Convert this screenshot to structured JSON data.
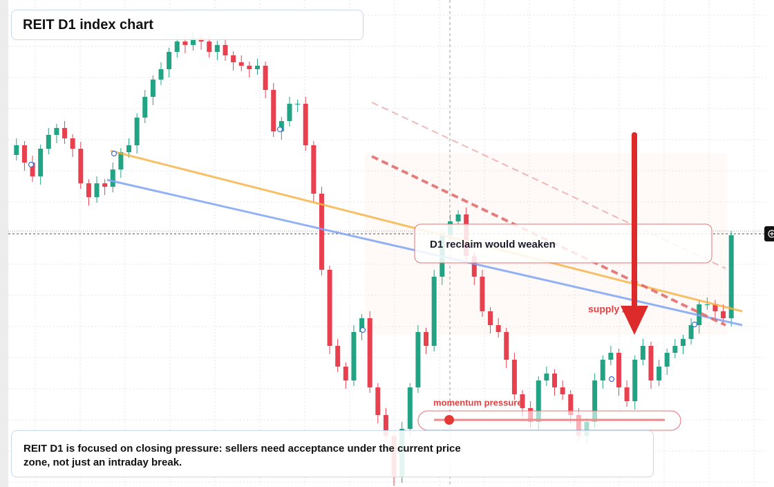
{
  "chart_data": {
    "type": "candlestick",
    "title": "REIT D1 index chart",
    "ylim": [
      0,
      704
    ],
    "up_color": "#22a383",
    "down_color": "#e8404f",
    "ohlc": [
      [
        480,
        504,
        472,
        494
      ],
      [
        494,
        500,
        457,
        469
      ],
      [
        469,
        479,
        441,
        449
      ],
      [
        449,
        495,
        437,
        489
      ],
      [
        489,
        519,
        481,
        509
      ],
      [
        509,
        525,
        497,
        519
      ],
      [
        519,
        529,
        496,
        504
      ],
      [
        504,
        510,
        477,
        489
      ],
      [
        489,
        499,
        431,
        439
      ],
      [
        439,
        445,
        407,
        419
      ],
      [
        419,
        449,
        411,
        439
      ],
      [
        439,
        445,
        422,
        434
      ],
      [
        434,
        469,
        426,
        459
      ],
      [
        459,
        490,
        447,
        484
      ],
      [
        484,
        504,
        476,
        494
      ],
      [
        494,
        540,
        482,
        534
      ],
      [
        534,
        574,
        526,
        564
      ],
      [
        564,
        595,
        552,
        589
      ],
      [
        589,
        614,
        581,
        604
      ],
      [
        604,
        635,
        592,
        629
      ],
      [
        629,
        654,
        621,
        644
      ],
      [
        644,
        650,
        627,
        639
      ],
      [
        639,
        659,
        631,
        649
      ],
      [
        649,
        655,
        632,
        644
      ],
      [
        644,
        654,
        621,
        629
      ],
      [
        629,
        645,
        617,
        639
      ],
      [
        639,
        649,
        616,
        624
      ],
      [
        624,
        630,
        602,
        614
      ],
      [
        614,
        624,
        601,
        609
      ],
      [
        609,
        615,
        592,
        604
      ],
      [
        604,
        619,
        596,
        609
      ],
      [
        609,
        615,
        562,
        574
      ],
      [
        574,
        584,
        506,
        514
      ],
      [
        514,
        535,
        502,
        529
      ],
      [
        529,
        564,
        521,
        554
      ],
      [
        554,
        560,
        542,
        554
      ],
      [
        554,
        564,
        486,
        494
      ],
      [
        494,
        500,
        412,
        424
      ],
      [
        424,
        434,
        306,
        314
      ],
      [
        314,
        320,
        192,
        204
      ],
      [
        204,
        214,
        166,
        174
      ],
      [
        174,
        180,
        142,
        154
      ],
      [
        154,
        234,
        146,
        224
      ],
      [
        224,
        250,
        212,
        244
      ],
      [
        244,
        254,
        136,
        144
      ],
      [
        144,
        150,
        92,
        104
      ],
      [
        104,
        114,
        66,
        74
      ],
      [
        74,
        80,
        2,
        14
      ],
      [
        14,
        94,
        6,
        84
      ],
      [
        84,
        150,
        72,
        144
      ],
      [
        144,
        234,
        136,
        224
      ],
      [
        224,
        230,
        192,
        204
      ],
      [
        204,
        314,
        196,
        304
      ],
      [
        304,
        370,
        292,
        364
      ],
      [
        364,
        394,
        356,
        384
      ],
      [
        384,
        400,
        372,
        394
      ],
      [
        394,
        404,
        326,
        334
      ],
      [
        334,
        340,
        292,
        304
      ],
      [
        304,
        314,
        246,
        254
      ],
      [
        254,
        260,
        222,
        234
      ],
      [
        234,
        244,
        216,
        224
      ],
      [
        224,
        230,
        172,
        184
      ],
      [
        184,
        194,
        126,
        134
      ],
      [
        134,
        140,
        102,
        114
      ],
      [
        114,
        124,
        86,
        94
      ],
      [
        94,
        160,
        82,
        154
      ],
      [
        154,
        174,
        146,
        164
      ],
      [
        164,
        170,
        132,
        144
      ],
      [
        144,
        154,
        126,
        134
      ],
      [
        134,
        140,
        92,
        104
      ],
      [
        104,
        114,
        66,
        74
      ],
      [
        74,
        100,
        62,
        94
      ],
      [
        94,
        164,
        86,
        154
      ],
      [
        154,
        190,
        142,
        184
      ],
      [
        184,
        204,
        176,
        194
      ],
      [
        194,
        200,
        132,
        144
      ],
      [
        144,
        154,
        116,
        124
      ],
      [
        124,
        190,
        112,
        184
      ],
      [
        184,
        214,
        176,
        204
      ],
      [
        204,
        210,
        142,
        154
      ],
      [
        154,
        184,
        146,
        174
      ],
      [
        174,
        200,
        162,
        194
      ],
      [
        194,
        214,
        186,
        204
      ],
      [
        204,
        220,
        192,
        214
      ],
      [
        214,
        244,
        206,
        234
      ],
      [
        234,
        270,
        222,
        264
      ],
      [
        264,
        274,
        256,
        264
      ],
      [
        264,
        270,
        242,
        254
      ],
      [
        254,
        264,
        236,
        244
      ],
      [
        244,
        370,
        232,
        364
      ]
    ],
    "annotations": {
      "reclaim": "D1 reclaim would weaken",
      "supply": "supply zone",
      "momentum": "momentum pressure"
    },
    "note": "REIT D1 is focused on closing pressure: sellers need acceptance under the current price zone, not just an intraday break."
  }
}
